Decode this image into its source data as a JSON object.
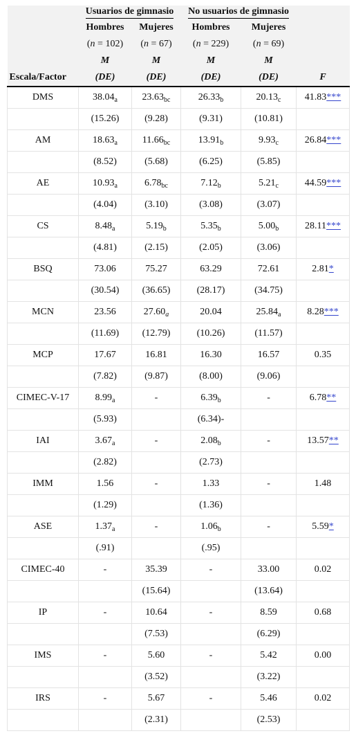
{
  "header": {
    "group1": "Usuarios de gimnasio",
    "group2": "No usuarios de gimnasio",
    "hombres": "Hombres",
    "mujeres": "Mujeres",
    "n_label": "n",
    "n_g1_h": "102",
    "n_g1_m": "67",
    "n_g2_h": "229",
    "n_g2_m": "69",
    "mean": "M",
    "sd": "(DE)",
    "scale": "Escala/Factor",
    "f": "F"
  },
  "rows": [
    {
      "name": "DMS",
      "m": [
        [
          "38.04",
          "a"
        ],
        [
          "23.63",
          "bc"
        ],
        [
          "26.33",
          "b"
        ],
        [
          "20.13",
          "c"
        ]
      ],
      "f": "41.83",
      "sig": "***",
      "sd": [
        "(15.26)",
        "(9.28)",
        "(9.31)",
        "(10.81)"
      ]
    },
    {
      "name": "AM",
      "m": [
        [
          "18.63",
          "a"
        ],
        [
          "11.66",
          "bc"
        ],
        [
          "13.91",
          "b"
        ],
        [
          "9.93",
          "c"
        ]
      ],
      "f": "26.84",
      "sig": "***",
      "sd": [
        "(8.52)",
        "(5.68)",
        "(6.25)",
        "(5.85)"
      ]
    },
    {
      "name": "AE",
      "m": [
        [
          "10.93",
          "a"
        ],
        [
          "6.78",
          "bc"
        ],
        [
          "7.12",
          "b"
        ],
        [
          "5.21",
          "c"
        ]
      ],
      "f": "44.59",
      "sig": "***",
      "sd": [
        "(4.04)",
        "(3.10)",
        "(3.08)",
        "(3.07)"
      ]
    },
    {
      "name": "CS",
      "m": [
        [
          "8.48",
          "a"
        ],
        [
          "5.19",
          "b"
        ],
        [
          "5.35",
          "b"
        ],
        [
          "5.00",
          "b"
        ]
      ],
      "f": "28.11",
      "sig": "***",
      "sd": [
        "(4.81)",
        "(2.15)",
        "(2.05)",
        "(3.06)"
      ]
    },
    {
      "name": "BSQ",
      "m": [
        [
          "73.06",
          ""
        ],
        [
          "75.27",
          ""
        ],
        [
          "63.29",
          ""
        ],
        [
          "72.61",
          ""
        ]
      ],
      "f": "2.81",
      "sig": "*",
      "sd": [
        "(30.54)",
        "(36.65)",
        "(28.17)",
        "(34.75)"
      ]
    },
    {
      "name": "MCN",
      "m": [
        [
          "23.56",
          ""
        ],
        [
          "27.60",
          "a"
        ],
        [
          "20.04",
          ""
        ],
        [
          "25.84",
          "a"
        ]
      ],
      "f": "8.28",
      "sig": "***",
      "sd": [
        "(11.69)",
        "(12.79)",
        "(10.26)",
        "(11.57)"
      ],
      "italic_sub": [
        false,
        true,
        false,
        false
      ]
    },
    {
      "name": "MCP",
      "m": [
        [
          "17.67",
          ""
        ],
        [
          "16.81",
          ""
        ],
        [
          "16.30",
          ""
        ],
        [
          "16.57",
          ""
        ]
      ],
      "f": "0.35",
      "sig": "",
      "sd": [
        "(7.82)",
        "(9.87)",
        "(8.00)",
        "(9.06)"
      ]
    },
    {
      "name": "CIMEC-V-17",
      "m": [
        [
          "8.99",
          "a"
        ],
        [
          "-",
          ""
        ],
        [
          "6.39",
          "b"
        ],
        [
          "-",
          ""
        ]
      ],
      "f": "6.78",
      "sig": "**",
      "sd": [
        "(5.93)",
        "",
        "(6.34)-",
        ""
      ]
    },
    {
      "name": "IAI",
      "m": [
        [
          "3.67",
          "a"
        ],
        [
          "-",
          ""
        ],
        [
          "2.08",
          "b"
        ],
        [
          "-",
          ""
        ]
      ],
      "f": "13.57",
      "sig": "**",
      "sd": [
        "(2.82)",
        "",
        "(2.73)",
        ""
      ]
    },
    {
      "name": "IMM",
      "m": [
        [
          "1.56",
          ""
        ],
        [
          "-",
          ""
        ],
        [
          "1.33",
          ""
        ],
        [
          "-",
          ""
        ]
      ],
      "f": "1.48",
      "sig": "",
      "sd": [
        "(1.29)",
        "",
        "(1.36)",
        ""
      ]
    },
    {
      "name": "ASE",
      "m": [
        [
          "1.37",
          "a"
        ],
        [
          "-",
          ""
        ],
        [
          "1.06",
          "b"
        ],
        [
          "-",
          ""
        ]
      ],
      "f": "5.59",
      "sig": "*",
      "sd": [
        "(.91)",
        "",
        "(.95)",
        ""
      ]
    },
    {
      "name": "CIMEC-40",
      "m": [
        [
          "-",
          ""
        ],
        [
          "35.39",
          ""
        ],
        [
          "-",
          ""
        ],
        [
          "33.00",
          ""
        ]
      ],
      "f": "0.02",
      "sig": "",
      "sd": [
        "",
        "(15.64)",
        "",
        "(13.64)"
      ]
    },
    {
      "name": "IP",
      "m": [
        [
          "-",
          ""
        ],
        [
          "10.64",
          ""
        ],
        [
          "-",
          ""
        ],
        [
          "8.59",
          ""
        ]
      ],
      "f": "0.68",
      "sig": "",
      "sd": [
        "",
        "(7.53)",
        "",
        "(6.29)"
      ]
    },
    {
      "name": "IMS",
      "m": [
        [
          "-",
          ""
        ],
        [
          "5.60",
          ""
        ],
        [
          "-",
          ""
        ],
        [
          "5.42",
          ""
        ]
      ],
      "f": "0.00",
      "sig": "",
      "sd": [
        "",
        "(3.52)",
        "",
        "(3.22)"
      ]
    },
    {
      "name": "IRS",
      "m": [
        [
          "-",
          ""
        ],
        [
          "5.67",
          ""
        ],
        [
          "-",
          ""
        ],
        [
          "5.46",
          ""
        ]
      ],
      "f": "0.02",
      "sig": "",
      "sd": [
        "",
        "(2.31)",
        "",
        "(2.53)"
      ]
    }
  ]
}
